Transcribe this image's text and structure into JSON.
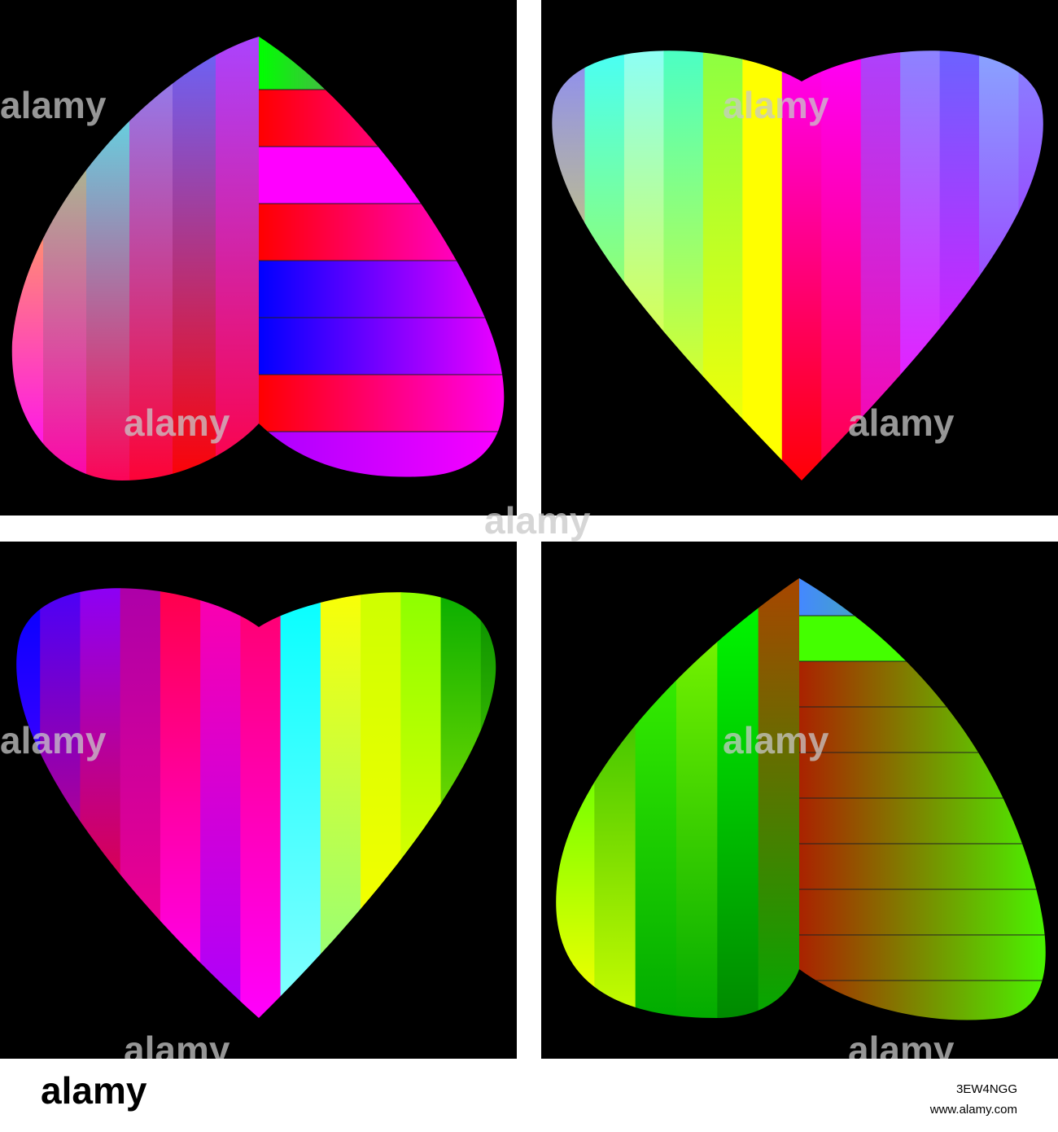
{
  "watermark": "alamy",
  "footer": {
    "logo": "alamy",
    "image_id": "3EW4NGG",
    "url": "www.alamy.com"
  }
}
